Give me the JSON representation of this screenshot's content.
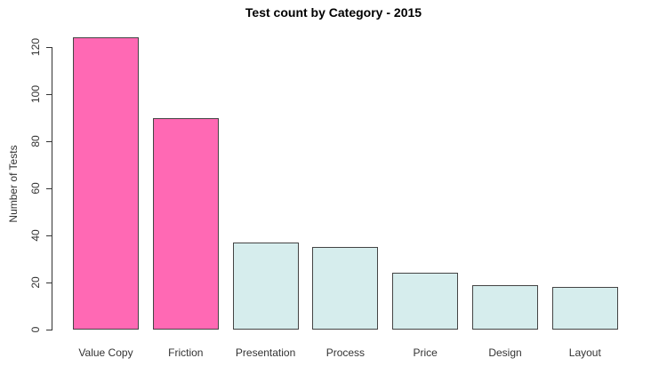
{
  "chart_data": {
    "type": "bar",
    "title": "Test count by Category - 2015",
    "ylabel": "Number of Tests",
    "xlabel": "",
    "categories": [
      "Value Copy",
      "Friction",
      "Presentation",
      "Process",
      "Price",
      "Design",
      "Layout"
    ],
    "values": [
      124,
      90,
      37,
      35,
      24,
      19,
      18
    ],
    "bar_colors": [
      "#FF69B4",
      "#FF69B4",
      "#D6EDED",
      "#D6EDED",
      "#D6EDED",
      "#D6EDED",
      "#D6EDED"
    ],
    "highlight_color": "#FF69B4",
    "base_color": "#D6EDED",
    "bar_border_color": "#444444",
    "axis_color": "#333333",
    "text_color": "#333333",
    "background_color": "#FFFFFF",
    "yticks": [
      0,
      20,
      40,
      60,
      80,
      100,
      120
    ],
    "ylim": [
      0,
      120
    ],
    "grid": false,
    "legend": null
  }
}
